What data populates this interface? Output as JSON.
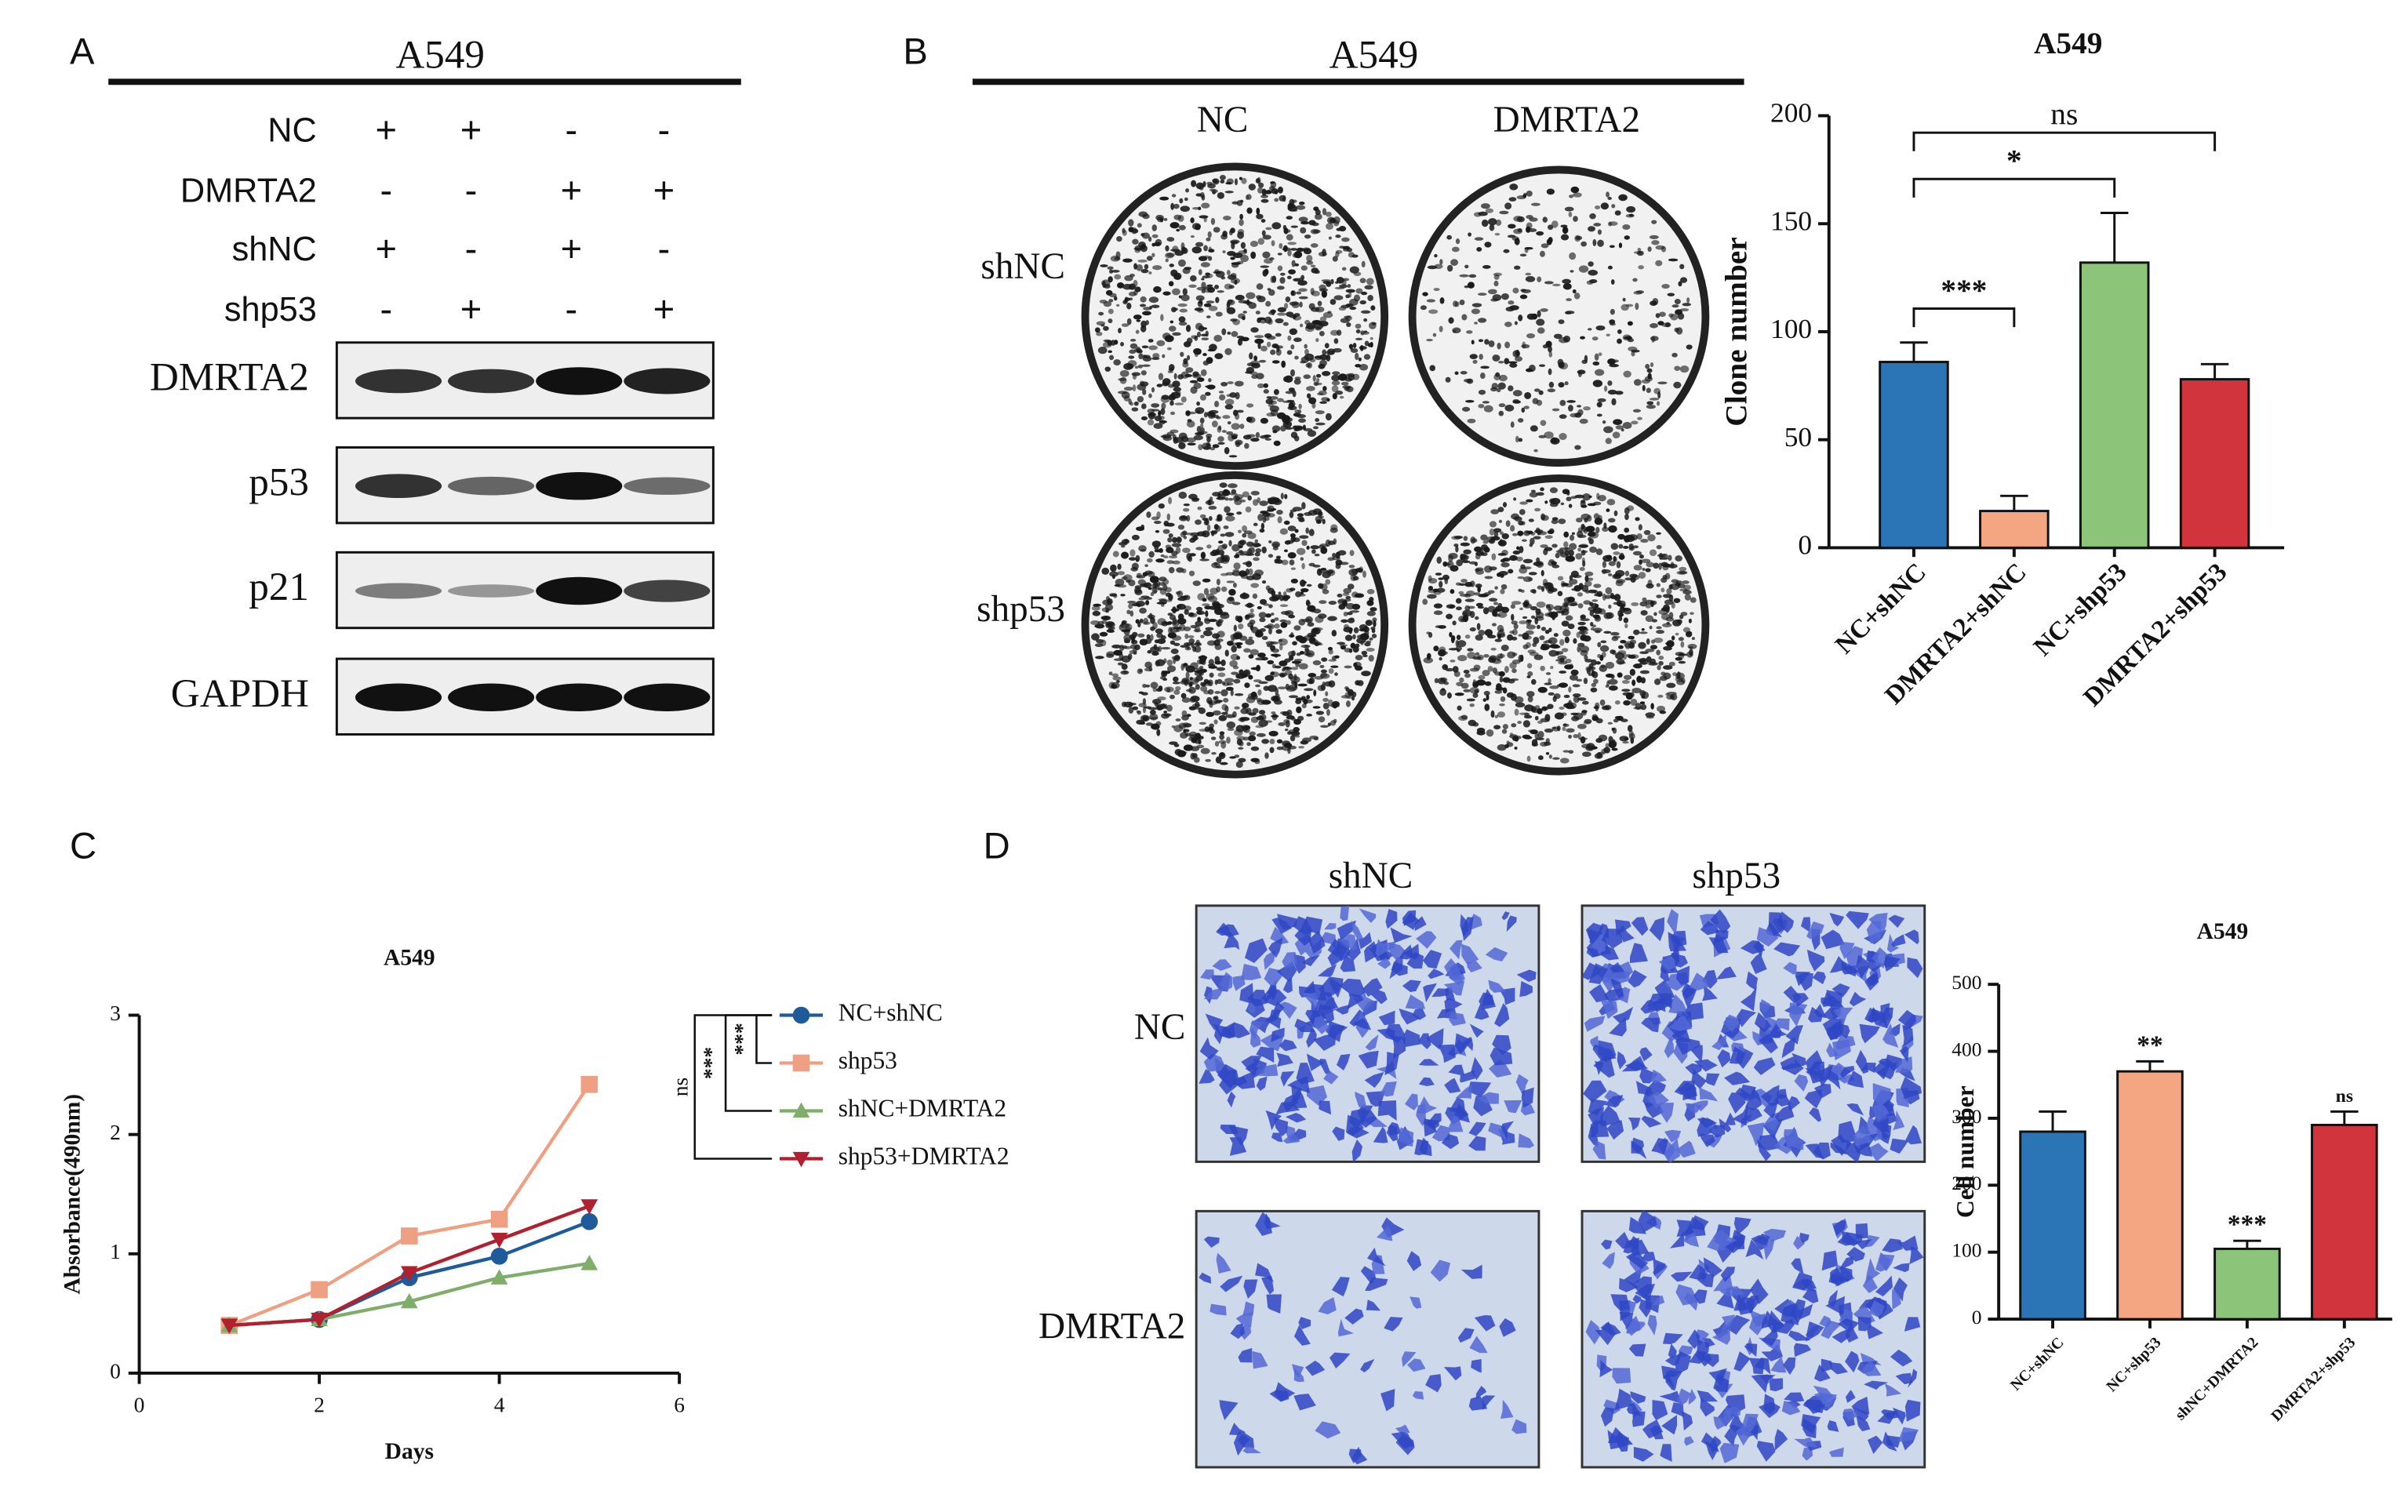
{
  "panel_a": {
    "label": "A",
    "title": "A549",
    "conditions": [
      {
        "label": "NC",
        "lanes": [
          "+",
          "+",
          "-",
          "-"
        ]
      },
      {
        "label": "DMRTA2",
        "lanes": [
          "-",
          "-",
          "+",
          "+"
        ]
      },
      {
        "label": "shNC",
        "lanes": [
          "+",
          "-",
          "+",
          "-"
        ]
      },
      {
        "label": "shp53",
        "lanes": [
          "-",
          "+",
          "-",
          "+"
        ]
      }
    ],
    "blots": [
      "DMRTA2",
      "p53",
      "p21",
      "GAPDH"
    ]
  },
  "panel_b": {
    "label": "B",
    "title": "A549",
    "columns": [
      "NC",
      "DMRTA2"
    ],
    "rows": [
      "shNC",
      "shp53"
    ]
  },
  "panel_c": {
    "label": "C"
  },
  "panel_d": {
    "label": "D",
    "columns": [
      "shNC",
      "shp53"
    ],
    "rows": [
      "NC",
      "DMRTA2"
    ]
  },
  "chart_data": [
    {
      "type": "bar",
      "title": "A549",
      "y_label": "Clone number",
      "categories": [
        "NC+shNC",
        "DMRTA2+shNC",
        "NC+shp53",
        "DMRTA2+shp53"
      ],
      "values": [
        86,
        17,
        132,
        78
      ],
      "errors": [
        9,
        7,
        23,
        7
      ],
      "colors": [
        "#2b74b5",
        "#f4a582",
        "#8cc47a",
        "#d1343c"
      ],
      "ylim": [
        0,
        200
      ],
      "yticks": [
        0,
        50,
        100,
        150,
        200
      ],
      "comparisons": [
        {
          "from": "NC+shNC",
          "to": "DMRTA2+shNC",
          "label": "***"
        },
        {
          "from": "NC+shNC",
          "to": "NC+shp53",
          "label": "*"
        },
        {
          "from": "NC+shNC",
          "to": "DMRTA2+shp53",
          "label": "ns"
        }
      ]
    },
    {
      "type": "line",
      "title": "A549",
      "x_label": "Days",
      "y_label": "Absorbance(490nm)",
      "x": [
        1,
        2,
        3,
        4,
        5
      ],
      "series": [
        {
          "name": "NC+shNC",
          "color": "#1f5a9a",
          "marker": "circle",
          "values": [
            0.4,
            0.45,
            0.8,
            0.98,
            1.27
          ]
        },
        {
          "name": "shp53",
          "color": "#ef9f82",
          "marker": "square",
          "values": [
            0.4,
            0.7,
            1.15,
            1.29,
            2.42
          ]
        },
        {
          "name": "shNC+DMRTA2",
          "color": "#7fae6a",
          "marker": "triangle-up",
          "values": [
            0.4,
            0.45,
            0.6,
            0.8,
            0.92
          ]
        },
        {
          "name": "shp53+DMRTA2",
          "color": "#b0202e",
          "marker": "triangle-down",
          "values": [
            0.4,
            0.45,
            0.84,
            1.12,
            1.4
          ]
        }
      ],
      "xlim": [
        0,
        6
      ],
      "xticks": [
        0,
        2,
        4,
        6
      ],
      "ylim": [
        0,
        3
      ],
      "yticks": [
        0,
        1,
        2,
        3
      ],
      "legend": "right",
      "comparisons": [
        {
          "from": "NC+shNC",
          "to": "shp53",
          "label": "***"
        },
        {
          "from": "NC+shNC",
          "to": "shNC+DMRTA2",
          "label": "***"
        },
        {
          "from": "NC+shNC",
          "to": "shp53+DMRTA2",
          "label": "ns"
        }
      ]
    },
    {
      "type": "bar",
      "title": "A549",
      "y_label": "Cell number",
      "categories": [
        "NC+shNC",
        "NC+shp53",
        "shNC+DMRTA2",
        "DMRTA2+shp53"
      ],
      "values": [
        280,
        370,
        105,
        290
      ],
      "errors": [
        30,
        15,
        12,
        20
      ],
      "colors": [
        "#2b74b5",
        "#f4a582",
        "#8cc47a",
        "#d1343c"
      ],
      "ylim": [
        0,
        500
      ],
      "yticks": [
        0,
        100,
        200,
        300,
        400,
        500
      ],
      "significance": [
        {
          "category": "NC+shp53",
          "label": "**"
        },
        {
          "category": "shNC+DMRTA2",
          "label": "***"
        },
        {
          "category": "DMRTA2+shp53",
          "label": "ns"
        }
      ]
    }
  ]
}
